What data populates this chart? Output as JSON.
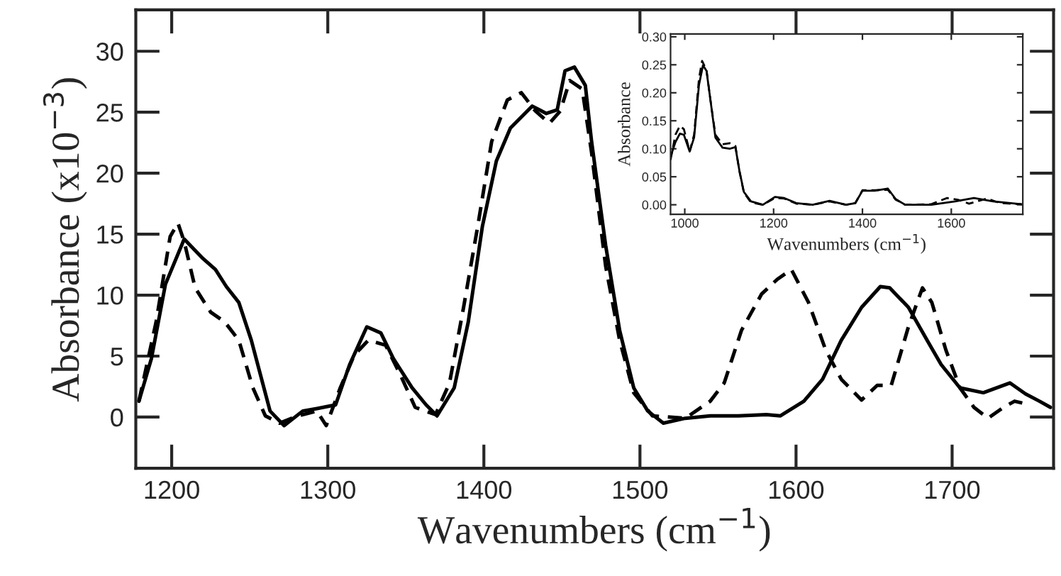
{
  "chart_data": [
    {
      "type": "line",
      "xlabel": "Wavenumbers (cm$^{−1}$)",
      "ylabel": "Absorbance (x10$^{−3}$)",
      "xlim": [
        1177,
        1765
      ],
      "ylim": [
        -4.2,
        33.4
      ],
      "xticks": [
        1200,
        1300,
        1400,
        1500,
        1600,
        1700
      ],
      "yticks": [
        0,
        5,
        10,
        15,
        20,
        25,
        30
      ],
      "series": [
        {
          "color": "#000000",
          "line_style": "solid",
          "x": [
            1179,
            1187,
            1196,
            1208,
            1220,
            1228,
            1235,
            1243,
            1251,
            1263,
            1272,
            1284,
            1293,
            1305,
            1314,
            1325,
            1334,
            1342,
            1354,
            1363,
            1370,
            1381,
            1390,
            1399,
            1408,
            1417,
            1431,
            1440,
            1447,
            1452,
            1458,
            1465,
            1469,
            1478,
            1487,
            1496,
            1505,
            1515,
            1529,
            1545,
            1563,
            1581,
            1590,
            1605,
            1617,
            1629,
            1642,
            1654,
            1660,
            1672,
            1684,
            1693,
            1705,
            1720,
            1737,
            1747,
            1756,
            1763
          ],
          "values": [
            1.3,
            4.8,
            10.9,
            14.6,
            13.0,
            12.1,
            10.7,
            9.4,
            6.3,
            0.5,
            -0.7,
            0.5,
            0.7,
            1.0,
            4.3,
            7.4,
            6.9,
            4.8,
            2.4,
            1.0,
            0.1,
            2.4,
            7.8,
            15.6,
            21.0,
            23.7,
            25.5,
            24.9,
            25.2,
            28.4,
            28.7,
            27.2,
            22.6,
            14.1,
            7.1,
            2.4,
            0.5,
            -0.5,
            -0.1,
            0.1,
            0.1,
            0.2,
            0.1,
            1.3,
            3.1,
            6.3,
            9.0,
            10.7,
            10.6,
            9.0,
            6.3,
            4.3,
            2.4,
            2.0,
            2.8,
            1.9,
            1.3,
            0.8
          ]
        },
        {
          "color": "#000000",
          "line_style": "dashed",
          "x": [
            1179,
            1190,
            1199,
            1204,
            1208,
            1215,
            1225,
            1234,
            1243,
            1252,
            1260,
            1269,
            1281,
            1293,
            1299,
            1308,
            1317,
            1326,
            1337,
            1346,
            1356,
            1369,
            1378,
            1387,
            1396,
            1405,
            1415,
            1424,
            1433,
            1442,
            1449,
            1455,
            1463,
            1469,
            1478,
            1487,
            1496,
            1508,
            1529,
            1545,
            1554,
            1565,
            1578,
            1588,
            1597,
            1608,
            1619,
            1629,
            1642,
            1652,
            1661,
            1672,
            1681,
            1687,
            1696,
            1705,
            1714,
            1723,
            1733,
            1740,
            1750
          ],
          "values": [
            1.3,
            7.8,
            14.8,
            15.9,
            14.4,
            10.6,
            8.6,
            7.8,
            6.3,
            2.4,
            0.1,
            -0.5,
            0.1,
            0.5,
            -0.7,
            2.4,
            5.1,
            6.3,
            5.9,
            3.6,
            0.8,
            0.2,
            2.8,
            9.0,
            15.6,
            22.6,
            26.0,
            26.6,
            25.1,
            24.1,
            25.1,
            27.6,
            26.9,
            21.7,
            12.4,
            6.3,
            2.0,
            0.1,
            -0.1,
            1.3,
            2.8,
            7.1,
            10.1,
            11.3,
            12.1,
            9.4,
            5.5,
            3.1,
            1.4,
            2.6,
            2.6,
            7.4,
            10.6,
            9.4,
            5.5,
            2.4,
            0.8,
            -0.1,
            0.8,
            1.3,
            1.0
          ]
        }
      ]
    },
    {
      "type": "line",
      "xlabel": "Wavenumbers (cm$^{−1}$)",
      "ylabel": "Absorbance",
      "xlim": [
        968,
        1761
      ],
      "ylim": [
        -0.017,
        0.305
      ],
      "xticks": [
        1000,
        1200,
        1400,
        1600
      ],
      "yticks": [
        {
          "value": 0,
          "label": "0.00"
        },
        {
          "value": 0.05,
          "label": "0.05"
        },
        {
          "value": 0.1,
          "label": "0.10"
        },
        {
          "value": 0.15,
          "label": "0.15"
        },
        {
          "value": 0.2,
          "label": "0.20"
        },
        {
          "value": 0.25,
          "label": "0.25"
        },
        {
          "value": 0.3,
          "label": "0.30"
        }
      ],
      "series": [
        {
          "color": "#000000",
          "line_style": "solid",
          "x": [
            968,
            979,
            989,
            998,
            1011,
            1021,
            1032,
            1041,
            1049,
            1059,
            1069,
            1085,
            1101,
            1114,
            1123,
            1133,
            1149,
            1176,
            1203,
            1224,
            1251,
            1288,
            1326,
            1363,
            1384,
            1400,
            1427,
            1457,
            1475,
            1496,
            1555,
            1609,
            1651,
            1694,
            1758
          ],
          "values": [
            0.086,
            0.112,
            0.127,
            0.125,
            0.095,
            0.12,
            0.214,
            0.249,
            0.239,
            0.18,
            0.12,
            0.102,
            0.1,
            0.103,
            0.061,
            0.023,
            0.006,
            0,
            0.014,
            0.012,
            0.003,
            0,
            0.007,
            0,
            0.003,
            0.025,
            0.025,
            0.029,
            0.01,
            0,
            0,
            0.006,
            0.012,
            0.006,
            0.001
          ]
        },
        {
          "color": "#000000",
          "line_style": "dashed",
          "x": [
            968,
            979,
            989,
            998,
            1011,
            1021,
            1032,
            1039,
            1049,
            1059,
            1069,
            1085,
            1101,
            1114,
            1123,
            1133,
            1149,
            1176,
            1203,
            1224,
            1251,
            1288,
            1326,
            1363,
            1384,
            1400,
            1427,
            1457,
            1475,
            1496,
            1555,
            1590,
            1615,
            1640,
            1680,
            1710,
            1758
          ],
          "values": [
            0.08,
            0.125,
            0.141,
            0.135,
            0.095,
            0.125,
            0.225,
            0.257,
            0.24,
            0.18,
            0.125,
            0.108,
            0.11,
            0.105,
            0.06,
            0.022,
            0.004,
            0,
            0.012,
            0.011,
            0.002,
            0,
            0.006,
            0,
            0.003,
            0.026,
            0.026,
            0.027,
            0.009,
            0,
            0.001,
            0.012,
            0.009,
            0.002,
            0.011,
            0.003,
            0.001
          ]
        }
      ]
    }
  ]
}
